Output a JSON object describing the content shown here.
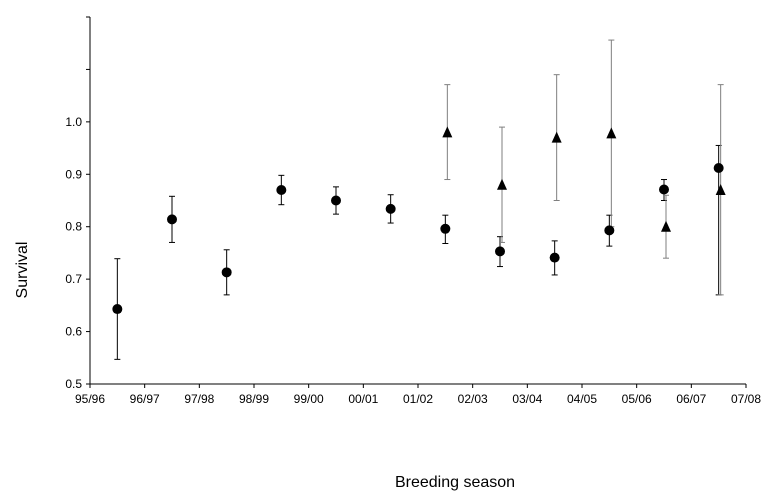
{
  "chart_data": {
    "type": "scatter",
    "title": "",
    "xlabel": "Breeding season",
    "ylabel": "Survival",
    "x_ticks": [
      "95/96",
      "96/97",
      "97/98",
      "98/99",
      "99/00",
      "00/01",
      "01/02",
      "02/03",
      "03/04",
      "04/05",
      "05/06",
      "06/07",
      "07/08"
    ],
    "y_tick_labels": [
      "0.5",
      "0.6",
      "0.7",
      "0.8",
      "0.9",
      "1.0"
    ],
    "ylim": [
      0.5,
      1.2
    ],
    "grid": false,
    "legend": "none",
    "series": [
      {
        "marker": "circle",
        "color": "#000000",
        "points": [
          {
            "season": "95/96-96/97",
            "y": 0.643,
            "low": 0.547,
            "high": 0.739
          },
          {
            "season": "96/97-97/98",
            "y": 0.814,
            "low": 0.77,
            "high": 0.858
          },
          {
            "season": "97/98-98/99",
            "y": 0.713,
            "low": 0.67,
            "high": 0.756
          },
          {
            "season": "98/99-99/00",
            "y": 0.87,
            "low": 0.842,
            "high": 0.898
          },
          {
            "season": "99/00-00/01",
            "y": 0.85,
            "low": 0.824,
            "high": 0.876
          },
          {
            "season": "00/01-01/02",
            "y": 0.834,
            "low": 0.807,
            "high": 0.861
          },
          {
            "season": "01/02-02/03",
            "y": 0.796,
            "low": 0.768,
            "high": 0.822
          },
          {
            "season": "02/03-03/04",
            "y": 0.753,
            "low": 0.724,
            "high": 0.781
          },
          {
            "season": "03/04-04/05",
            "y": 0.741,
            "low": 0.708,
            "high": 0.773
          },
          {
            "season": "04/05-05/06",
            "y": 0.793,
            "low": 0.763,
            "high": 0.822
          },
          {
            "season": "05/06-06/07",
            "y": 0.871,
            "low": 0.85,
            "high": 0.89
          },
          {
            "season": "06/07-07/08",
            "y": 0.912,
            "low": 0.67,
            "high": 0.955
          }
        ]
      },
      {
        "marker": "triangle",
        "color": "#000000",
        "points": [
          {
            "season": "01/02-02/03",
            "y": 0.98,
            "low": 0.89,
            "high": 1.071
          },
          {
            "season": "02/03-03/04",
            "y": 0.88,
            "low": 0.77,
            "high": 0.99
          },
          {
            "season": "03/04-04/05",
            "y": 0.97,
            "low": 0.85,
            "high": 1.09
          },
          {
            "season": "04/05-05/06",
            "y": 0.978,
            "low": 0.8,
            "high": 1.156
          },
          {
            "season": "05/06-06/07",
            "y": 0.8,
            "low": 0.74,
            "high": 0.86
          },
          {
            "season": "06/07-07/08",
            "y": 0.87,
            "low": 0.67,
            "high": 1.071
          }
        ]
      }
    ]
  }
}
